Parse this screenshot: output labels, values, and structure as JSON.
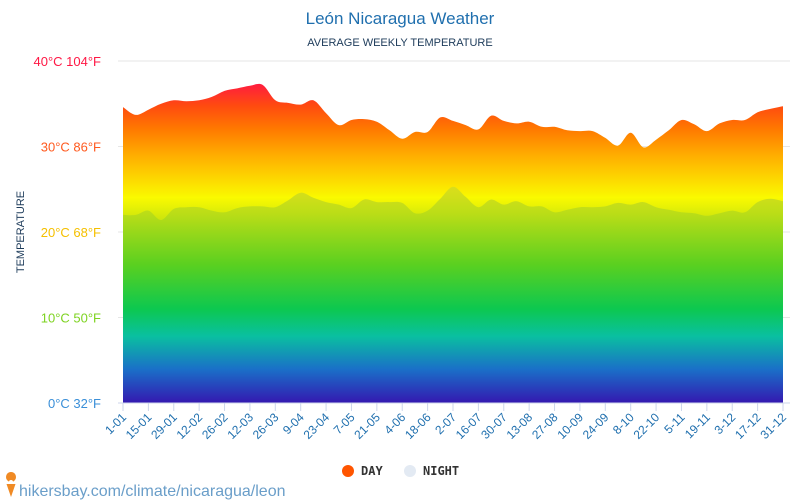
{
  "chart_data": {
    "type": "area",
    "title": "León Nicaragua Weather",
    "subtitle": "AVERAGE WEEKLY TEMPERATURE",
    "ylabel": "TEMPERATURE",
    "xlabel": "",
    "ylim": [
      0,
      40
    ],
    "yticks": [
      {
        "value": 0,
        "label": "0°C 32°F",
        "color": "#3a8fd8"
      },
      {
        "value": 10,
        "label": "10°C 50°F",
        "color": "#7ed321"
      },
      {
        "value": 20,
        "label": "20°C 68°F",
        "color": "#f5c000"
      },
      {
        "value": 30,
        "label": "30°C 86°F",
        "color": "#ff5a1f"
      },
      {
        "value": 40,
        "label": "40°C 104°F",
        "color": "#ff1744"
      }
    ],
    "x_tick_labels": [
      "1-01",
      "15-01",
      "29-01",
      "12-02",
      "26-02",
      "12-03",
      "26-03",
      "9-04",
      "23-04",
      "7-05",
      "21-05",
      "4-06",
      "18-06",
      "2-07",
      "16-07",
      "30-07",
      "13-08",
      "27-08",
      "10-09",
      "24-09",
      "8-10",
      "22-10",
      "5-11",
      "19-11",
      "3-12",
      "17-12",
      "31-12"
    ],
    "grid": true,
    "legend_position": "bottom-center",
    "series": [
      {
        "name": "DAY",
        "color": "#ff5500",
        "values": [
          34.6,
          33.7,
          34.3,
          35.0,
          35.4,
          35.3,
          35.4,
          35.8,
          36.5,
          36.8,
          37.1,
          37.2,
          35.4,
          35.1,
          34.9,
          35.4,
          33.9,
          32.5,
          33.1,
          33.2,
          32.9,
          31.9,
          30.9,
          31.7,
          31.7,
          33.4,
          33.0,
          32.5,
          32.0,
          33.6,
          33.0,
          32.7,
          32.9,
          32.3,
          32.3,
          31.9,
          31.8,
          31.8,
          31.0,
          30.1,
          31.6,
          29.9,
          30.8,
          31.9,
          33.1,
          32.6,
          31.8,
          32.7,
          33.1,
          33.1,
          34.0,
          34.4,
          34.7
        ]
      },
      {
        "name": "NIGHT",
        "color": "#e3eaf3",
        "values": [
          22.0,
          22.0,
          22.5,
          21.4,
          22.7,
          22.9,
          22.9,
          22.5,
          22.3,
          22.8,
          23.0,
          23.0,
          22.9,
          23.7,
          24.6,
          24.0,
          23.5,
          23.2,
          22.8,
          23.8,
          23.5,
          23.5,
          23.4,
          22.2,
          22.5,
          23.9,
          25.3,
          24.1,
          22.9,
          23.8,
          23.2,
          23.6,
          23.0,
          23.0,
          22.3,
          22.6,
          22.9,
          22.9,
          23.0,
          23.4,
          23.2,
          23.5,
          22.9,
          22.6,
          22.3,
          22.2,
          21.9,
          22.2,
          22.5,
          22.3,
          23.5,
          23.9,
          23.6
        ]
      }
    ]
  },
  "footer": {
    "source": "hikersbay.com/climate/nicaragua/leon"
  }
}
